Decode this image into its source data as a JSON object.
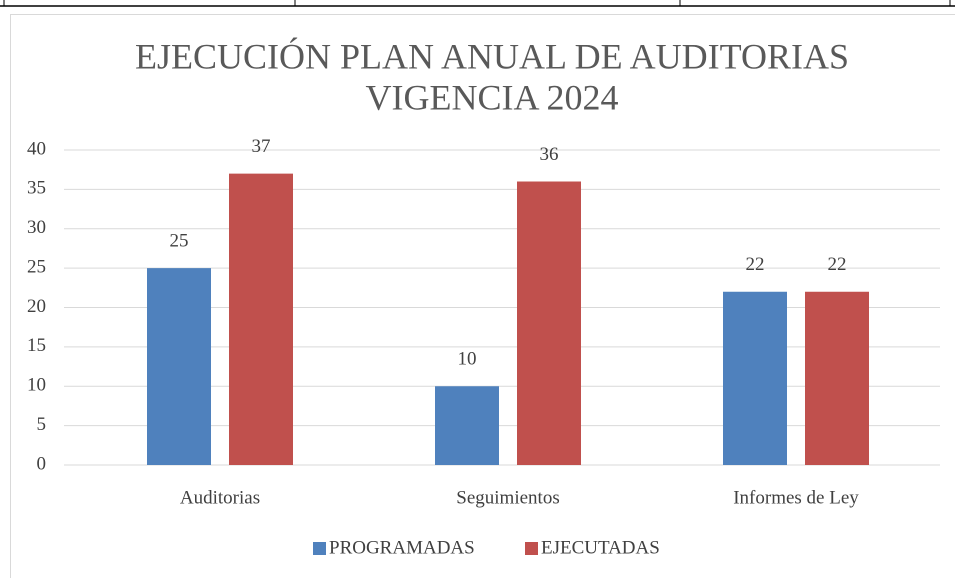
{
  "chart_data": {
    "type": "bar",
    "title": [
      "EJECUCIÓN PLAN ANUAL DE AUDITORIAS",
      "VIGENCIA 2024"
    ],
    "categories": [
      "Auditorias",
      "Seguimientos",
      "Informes de Ley"
    ],
    "series": [
      {
        "name": "PROGRAMADAS",
        "color": "#4f81bd",
        "values": [
          25,
          10,
          22
        ]
      },
      {
        "name": "EJECUTADAS",
        "color": "#c0504d",
        "values": [
          37,
          36,
          22
        ]
      }
    ],
    "ylim": [
      0,
      40
    ],
    "yticks": [
      0,
      5,
      10,
      15,
      20,
      25,
      30,
      35,
      40
    ],
    "grid": true,
    "legend": "bottom"
  }
}
